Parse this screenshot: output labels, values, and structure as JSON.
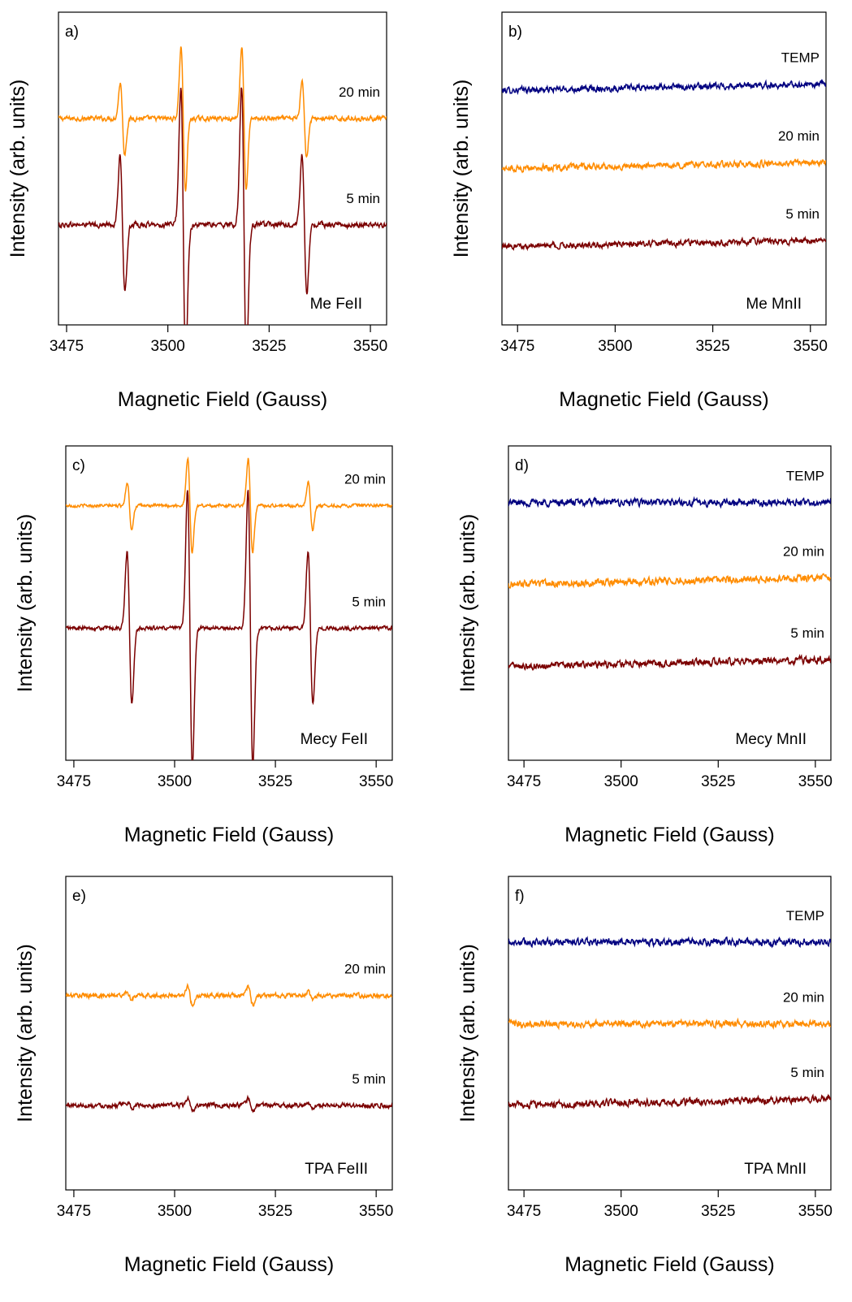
{
  "chart_data": [
    {
      "panel_label": "a)",
      "type": "line",
      "title": "",
      "annotation": "Me FeII",
      "xlabel": "Magnetic Field (Gauss)",
      "ylabel": "Intensity (arb. units)",
      "xlim": [
        3473,
        3554
      ],
      "x_ticks": [
        3475,
        3500,
        3525,
        3550
      ],
      "y_ticks_labeled": false,
      "grid": false,
      "series": [
        {
          "name": "20 min",
          "color": "#ff8c00",
          "baseline": 0.66,
          "line_amplitude": 0.23,
          "line_width_gauss": 0.55,
          "noise": 0.006,
          "lines_gauss": [
            3488.8,
            3503.8,
            3518.8,
            3533.7
          ],
          "line_weights": [
            0.5,
            1,
            1,
            0.55
          ]
        },
        {
          "name": "5 min",
          "color": "#7b0000",
          "baseline": 0.32,
          "line_amplitude": 0.44,
          "line_width_gauss": 0.6,
          "noise": 0.007,
          "lines_gauss": [
            3488.8,
            3503.8,
            3518.8,
            3533.7
          ],
          "line_weights": [
            0.5,
            1,
            1,
            0.5
          ]
        }
      ]
    },
    {
      "panel_label": "b)",
      "type": "line",
      "title": "",
      "annotation": "Me MnII",
      "xlabel": "Magnetic Field (Gauss)",
      "ylabel": "Intensity (arb. units)",
      "xlim": [
        3471,
        3554
      ],
      "x_ticks": [
        3475,
        3500,
        3525,
        3550
      ],
      "y_ticks_labeled": false,
      "grid": false,
      "series": [
        {
          "name": "TEMP",
          "color": "#000080",
          "baseline": 0.75,
          "drift": 0.02,
          "noise": 0.008,
          "lines_gauss": [],
          "line_weights": []
        },
        {
          "name": "20 min",
          "color": "#ff8c00",
          "baseline": 0.5,
          "drift": 0.02,
          "noise": 0.008,
          "lines_gauss": [],
          "line_weights": []
        },
        {
          "name": "5 min",
          "color": "#7b0000",
          "baseline": 0.25,
          "drift": 0.02,
          "noise": 0.008,
          "lines_gauss": [],
          "line_weights": []
        }
      ]
    },
    {
      "panel_label": "c)",
      "type": "line",
      "title": "",
      "annotation": "Mecy FeII",
      "xlabel": "Magnetic Field (Gauss)",
      "ylabel": "Intensity (arb. units)",
      "xlim": [
        3473,
        3554
      ],
      "x_ticks": [
        3475,
        3500,
        3525,
        3550
      ],
      "y_ticks_labeled": false,
      "grid": false,
      "series": [
        {
          "name": "20 min",
          "color": "#ff8c00",
          "baseline": 0.81,
          "line_amplitude": 0.15,
          "line_width_gauss": 0.55,
          "noise": 0.004,
          "lines_gauss": [
            3488.8,
            3503.8,
            3518.8,
            3533.7
          ],
          "line_weights": [
            0.5,
            1,
            1,
            0.5
          ]
        },
        {
          "name": "5 min",
          "color": "#7b0000",
          "baseline": 0.42,
          "line_amplitude": 0.44,
          "line_width_gauss": 0.6,
          "noise": 0.005,
          "lines_gauss": [
            3488.8,
            3503.8,
            3518.8,
            3533.7
          ],
          "line_weights": [
            0.55,
            1,
            1,
            0.55
          ]
        }
      ]
    },
    {
      "panel_label": "d)",
      "type": "line",
      "title": "",
      "annotation": "Mecy MnII",
      "xlabel": "Magnetic Field (Gauss)",
      "ylabel": "Intensity (arb. units)",
      "xlim": [
        3471,
        3554
      ],
      "x_ticks": [
        3475,
        3500,
        3525,
        3550
      ],
      "y_ticks_labeled": false,
      "grid": false,
      "series": [
        {
          "name": "TEMP",
          "color": "#000080",
          "baseline": 0.82,
          "drift": 0.0,
          "noise": 0.009,
          "lines_gauss": [],
          "line_weights": []
        },
        {
          "name": "20 min",
          "color": "#ff8c00",
          "baseline": 0.56,
          "drift": 0.02,
          "noise": 0.009,
          "lines_gauss": [],
          "line_weights": []
        },
        {
          "name": "5 min",
          "color": "#7b0000",
          "baseline": 0.3,
          "drift": 0.02,
          "noise": 0.009,
          "lines_gauss": [],
          "line_weights": []
        }
      ]
    },
    {
      "panel_label": "e)",
      "type": "line",
      "title": "",
      "annotation": "TPA FeIII",
      "xlabel": "Magnetic Field (Gauss)",
      "ylabel": "Intensity (arb. units)",
      "xlim": [
        3473,
        3554
      ],
      "x_ticks": [
        3475,
        3500,
        3525,
        3550
      ],
      "y_ticks_labeled": false,
      "grid": false,
      "series": [
        {
          "name": "20 min",
          "color": "#ff8c00",
          "baseline": 0.62,
          "line_amplitude": 0.03,
          "line_width_gauss": 0.6,
          "noise": 0.006,
          "lines_gauss": [
            3488.8,
            3503.8,
            3518.8,
            3533.7
          ],
          "line_weights": [
            0.4,
            1,
            1,
            0.4
          ]
        },
        {
          "name": "5 min",
          "color": "#7b0000",
          "baseline": 0.27,
          "line_amplitude": 0.02,
          "line_width_gauss": 0.6,
          "noise": 0.006,
          "lines_gauss": [
            3488.8,
            3503.8,
            3518.8,
            3533.7
          ],
          "line_weights": [
            0.4,
            1,
            1,
            0.4
          ]
        }
      ]
    },
    {
      "panel_label": "f)",
      "type": "line",
      "title": "",
      "annotation": "TPA MnII",
      "xlabel": "Magnetic Field (Gauss)",
      "ylabel": "Intensity (arb. units)",
      "xlim": [
        3471,
        3554
      ],
      "x_ticks": [
        3475,
        3500,
        3525,
        3550
      ],
      "y_ticks_labeled": false,
      "grid": false,
      "series": [
        {
          "name": "TEMP",
          "color": "#000080",
          "baseline": 0.79,
          "drift": 0.0,
          "noise": 0.009,
          "lines_gauss": [],
          "line_weights": []
        },
        {
          "name": "20 min",
          "color": "#ff8c00",
          "baseline": 0.53,
          "drift": 0.0,
          "noise": 0.009,
          "lines_gauss": [],
          "line_weights": []
        },
        {
          "name": "5 min",
          "color": "#7b0000",
          "baseline": 0.27,
          "drift": 0.02,
          "noise": 0.009,
          "lines_gauss": [],
          "line_weights": []
        }
      ]
    }
  ]
}
